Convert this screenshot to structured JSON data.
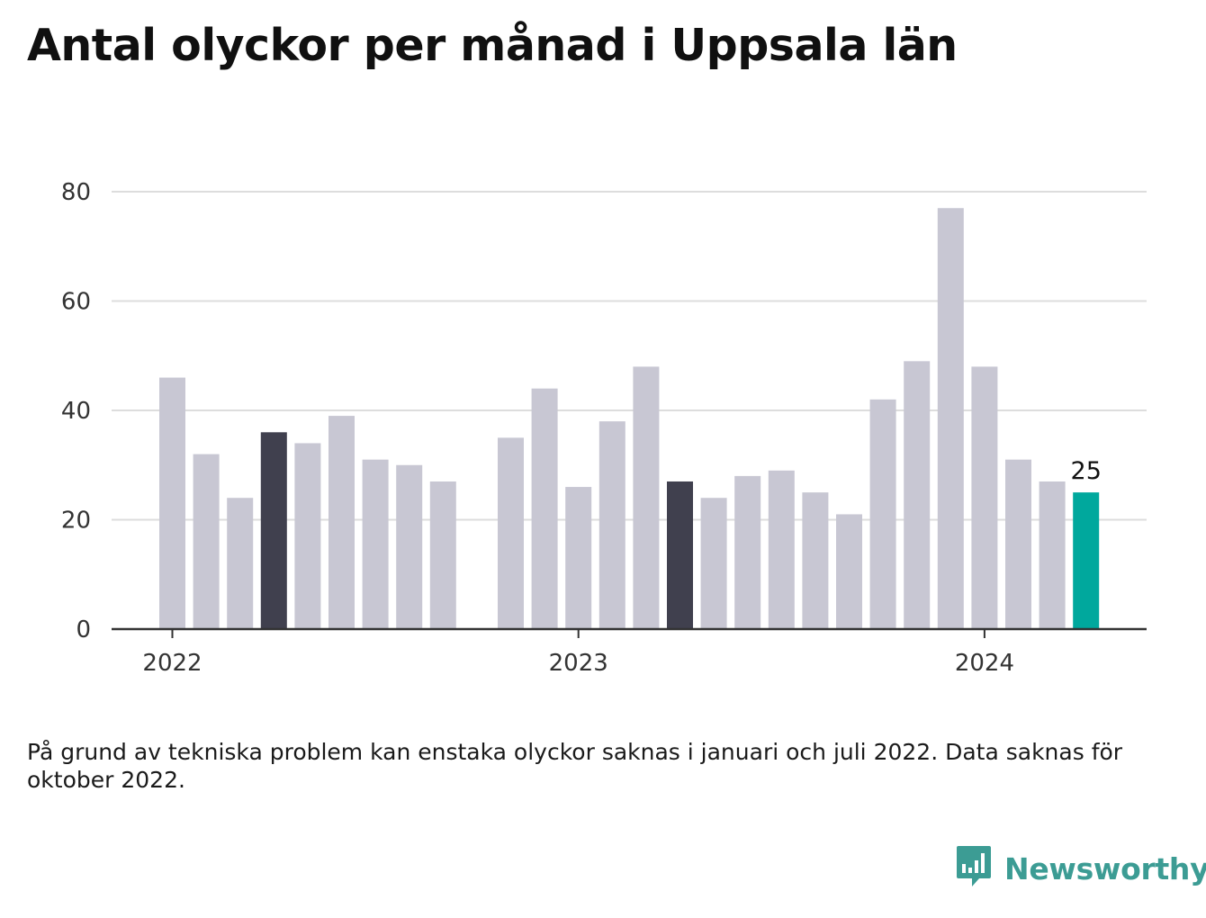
{
  "title": "Antal olyckor per månad i Uppsala län",
  "footnote": "På grund av tekniska problem kan enstaka olyckor saknas i januari och juli 2022. Data saknas för oktober 2022.",
  "brand": {
    "name": "Newsworthy",
    "icon": "newsworthy-logo-icon",
    "color": "#3c9c94"
  },
  "colors": {
    "default_bar": "#c8c7d3",
    "highlight_bar": "#40404e",
    "current_bar": "#00a89d",
    "grid": "#dddddd",
    "axis": "#333333"
  },
  "chart_data": {
    "type": "bar",
    "title": "Antal olyckor per månad i Uppsala län",
    "xlabel": "",
    "ylabel": "",
    "ylim": [
      0,
      80
    ],
    "yticks": [
      0,
      20,
      40,
      60,
      80
    ],
    "xtick_labels": [
      "2022",
      "2023",
      "2024"
    ],
    "grid": true,
    "categories": [
      "2022-01",
      "2022-02",
      "2022-03",
      "2022-04",
      "2022-05",
      "2022-06",
      "2022-07",
      "2022-08",
      "2022-09",
      "2022-10",
      "2022-11",
      "2022-12",
      "2023-01",
      "2023-02",
      "2023-03",
      "2023-04",
      "2023-05",
      "2023-06",
      "2023-07",
      "2023-08",
      "2023-09",
      "2023-10",
      "2023-11",
      "2023-12",
      "2024-01",
      "2024-02",
      "2024-03",
      "2024-04"
    ],
    "values": [
      46,
      32,
      24,
      36,
      34,
      39,
      31,
      30,
      27,
      null,
      35,
      44,
      26,
      38,
      48,
      27,
      24,
      28,
      29,
      25,
      21,
      42,
      49,
      77,
      48,
      31,
      27,
      25
    ],
    "highlighted": [
      "2022-04",
      "2023-04"
    ],
    "current": "2024-04",
    "annotations": [
      {
        "category": "2024-04",
        "text": "25"
      }
    ]
  }
}
